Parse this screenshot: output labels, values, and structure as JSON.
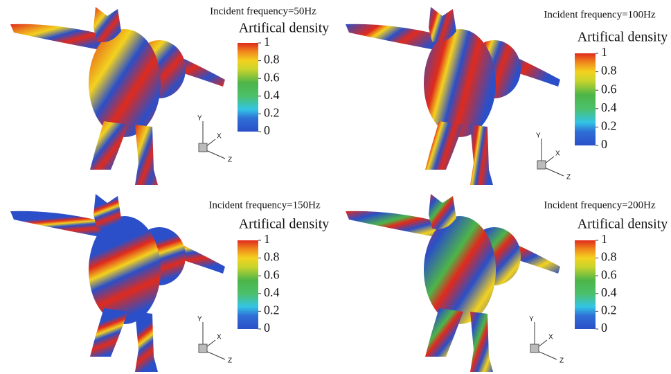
{
  "panels": [
    {
      "title": "Incident frequency=50Hz",
      "legend_title": "Artifical density",
      "colorbar": {
        "lim": [
          0,
          1
        ],
        "ticks": [
          1,
          0.8,
          0.6,
          0.4,
          0.2,
          0
        ]
      },
      "axes": {
        "y": "Y",
        "x": "X",
        "z": "Z"
      }
    },
    {
      "title": "Incident frequency=100Hz",
      "legend_title": "Artifical density",
      "colorbar": {
        "lim": [
          0,
          1
        ],
        "ticks": [
          1,
          0.8,
          0.6,
          0.4,
          0.2,
          0
        ]
      },
      "axes": {
        "y": "Y",
        "x": "X",
        "z": "Z"
      }
    },
    {
      "title": "Incident frequency=150Hz",
      "legend_title": "Artifical density",
      "colorbar": {
        "lim": [
          0,
          1
        ],
        "ticks": [
          1,
          0.8,
          0.6,
          0.4,
          0.2,
          0
        ]
      },
      "axes": {
        "y": "Y",
        "x": "X",
        "z": "Z"
      }
    },
    {
      "title": "Incident frequency=200Hz",
      "legend_title": "Artifical density",
      "colorbar": {
        "lim": [
          0,
          1
        ],
        "ticks": [
          1,
          0.8,
          0.6,
          0.4,
          0.2,
          0
        ]
      },
      "axes": {
        "y": "Y",
        "x": "X",
        "z": "Z"
      }
    }
  ]
}
